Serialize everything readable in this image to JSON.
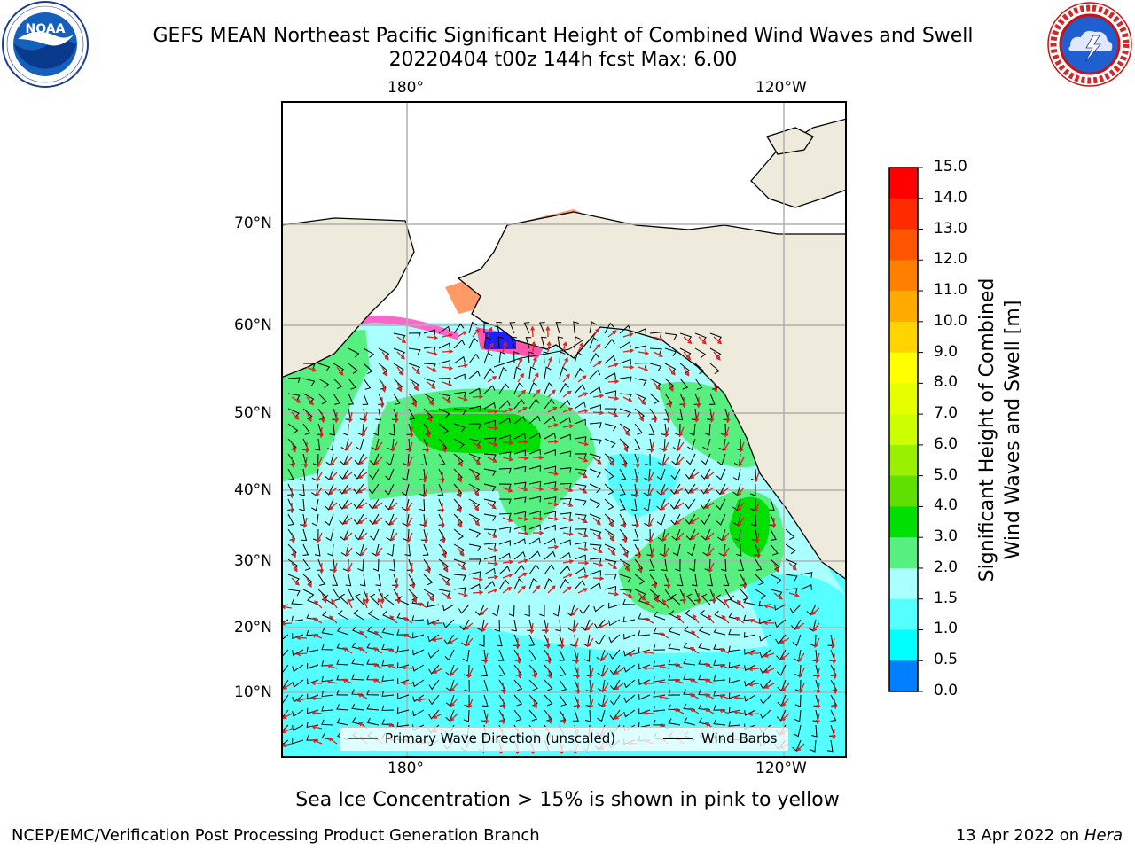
{
  "title": {
    "line1": "GEFS MEAN Northeast Pacific Significant Height of Combined Wind Waves and Swell",
    "line2": "20220404 t00z 144h fcst   Max: 6.00"
  },
  "logos": {
    "left": {
      "icon": "noaa-logo",
      "text": "NOAA",
      "ring": "NATIONAL OCEANIC AND ATMOSPHERIC ADMINISTRATION · U.S. DEPARTMENT OF COMMERCE"
    },
    "right": {
      "icon": "nws-logo",
      "ring": "NATIONAL WEATHER SERVICE"
    }
  },
  "map": {
    "lon_labels_top": [
      "180°",
      "120°W"
    ],
    "lon_labels_bottom": [
      "180°",
      "120°W"
    ],
    "lat_labels": [
      "70°N",
      "60°N",
      "50°N",
      "40°N",
      "30°N",
      "20°N",
      "10°N"
    ],
    "land_color": "#efebdc",
    "grid_color": "#b0b0b0",
    "wave_arrow_color": "#e02020",
    "wind_barb_color": "#000000"
  },
  "legend": {
    "wave_label": "Primary Wave Direction (unscaled)",
    "wind_label": "Wind Barbs"
  },
  "colorbar": {
    "label": "Significant Height of Combined Wind Waves and Swell [m]",
    "label_line1": "Significant Height of Combined",
    "label_line2": "Wind Waves and Swell [m]",
    "ticks": [
      "15.0",
      "14.0",
      "13.0",
      "12.0",
      "11.0",
      "10.0",
      "9.0",
      "8.0",
      "7.0",
      "6.0",
      "5.0",
      "4.0",
      "3.0",
      "2.0",
      "1.5",
      "1.0",
      "0.5",
      "0.0"
    ],
    "colors_top_to_bottom": [
      "#ff0000",
      "#ff2a00",
      "#ff5500",
      "#ff7f00",
      "#ffaa00",
      "#ffd400",
      "#ffff00",
      "#e6ff00",
      "#ccff00",
      "#99f000",
      "#5ee000",
      "#00e000",
      "#55f080",
      "#aaffff",
      "#55ffff",
      "#00ffff",
      "#0080ff",
      "#0000ff"
    ]
  },
  "caption": "Sea Ice Concentration > 15% is shown in pink to yellow",
  "footer": {
    "left": "NCEP/EMC/Verification Post Processing Product Generation Branch",
    "right_prefix": "13 Apr 2022 on ",
    "right_host": "Hera"
  }
}
